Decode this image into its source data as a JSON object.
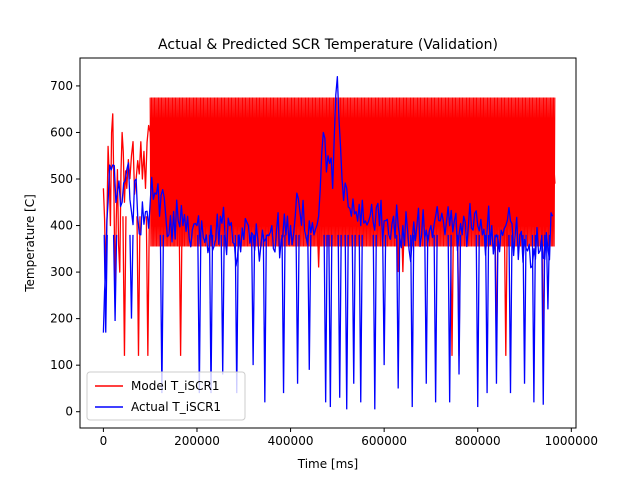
{
  "chart_data": {
    "type": "line",
    "title": "Actual & Predicted SCR Temperature (Validation)",
    "xlabel": "Time [ms]",
    "ylabel": "Temperature [C]",
    "xlim": [
      -50000,
      1010000
    ],
    "ylim": [
      -35,
      760
    ],
    "x_ticks": [
      0,
      200000,
      400000,
      600000,
      800000,
      1000000
    ],
    "x_tick_labels": [
      "0",
      "200000",
      "400000",
      "600000",
      "800000",
      "1000000"
    ],
    "y_ticks": [
      0,
      100,
      200,
      300,
      400,
      500,
      600,
      700
    ],
    "y_tick_labels": [
      "0",
      "100",
      "200",
      "300",
      "400",
      "500",
      "600",
      "700"
    ],
    "grid": false,
    "legend_position": "lower-left",
    "series": [
      {
        "name": "Model T_iSCR1",
        "color": "#ff0000",
        "x": [
          0,
          5000,
          10000,
          15000,
          20000,
          25000,
          30000,
          35000,
          40000,
          45000,
          50000,
          60000,
          70000,
          80000,
          90000,
          100000,
          110000,
          120000,
          140000,
          160000,
          180000,
          200000,
          250000,
          300000,
          350000,
          400000,
          450000,
          500000,
          550000,
          600000,
          650000,
          700000,
          750000,
          800000,
          850000,
          900000,
          950000,
          965000
        ],
        "values": [
          480,
          300,
          570,
          400,
          640,
          250,
          520,
          300,
          600,
          450,
          480,
          550,
          500,
          580,
          480,
          600,
          520,
          560,
          540,
          530,
          520,
          550,
          540,
          530,
          520,
          510,
          530,
          520,
          520,
          510,
          520,
          510,
          520,
          515,
          520,
          510,
          500,
          490
        ],
        "range_bands": [
          {
            "x0": 100000,
            "x1": 965000,
            "min": 355,
            "max": 675
          }
        ],
        "dips": [
          {
            "x": 45000,
            "min": 120
          },
          {
            "x": 75000,
            "min": 120
          },
          {
            "x": 95000,
            "min": 120
          },
          {
            "x": 165000,
            "min": 120
          },
          {
            "x": 460000,
            "min": 310
          },
          {
            "x": 630000,
            "min": 300
          },
          {
            "x": 640000,
            "min": 300
          },
          {
            "x": 745000,
            "min": 120
          },
          {
            "x": 760000,
            "min": 120
          },
          {
            "x": 840000,
            "min": 120
          },
          {
            "x": 860000,
            "min": 120
          },
          {
            "x": 940000,
            "min": 120
          }
        ]
      },
      {
        "name": "Actual T_iSCR1",
        "color": "#0000ff",
        "x": [
          0,
          5000,
          10000,
          20000,
          30000,
          40000,
          50000,
          60000,
          70000,
          80000,
          90000,
          100000,
          110000,
          120000,
          130000,
          140000,
          150000,
          160000,
          170000,
          180000,
          190000,
          200000,
          210000,
          220000,
          230000,
          240000,
          250000,
          260000,
          270000,
          280000,
          290000,
          300000,
          310000,
          320000,
          330000,
          340000,
          350000,
          360000,
          370000,
          380000,
          390000,
          400000,
          410000,
          420000,
          430000,
          440000,
          450000,
          460000,
          470000,
          480000,
          490000,
          500000,
          510000,
          520000,
          530000,
          540000,
          550000,
          560000,
          570000,
          580000,
          590000,
          600000,
          610000,
          620000,
          630000,
          640000,
          650000,
          660000,
          670000,
          680000,
          690000,
          700000,
          710000,
          720000,
          730000,
          740000,
          750000,
          760000,
          770000,
          780000,
          790000,
          800000,
          810000,
          820000,
          830000,
          840000,
          850000,
          860000,
          870000,
          880000,
          890000,
          900000,
          910000,
          920000,
          930000,
          940000,
          950000,
          960000
        ],
        "values": [
          170,
          300,
          450,
          530,
          470,
          450,
          520,
          430,
          500,
          380,
          430,
          450,
          470,
          420,
          460,
          380,
          430,
          410,
          400,
          420,
          390,
          400,
          410,
          380,
          400,
          370,
          420,
          380,
          400,
          360,
          380,
          370,
          400,
          380,
          370,
          390,
          380,
          400,
          390,
          370,
          380,
          400,
          420,
          430,
          390,
          410,
          380,
          420,
          600,
          550,
          480,
          720,
          500,
          480,
          420,
          430,
          400,
          410,
          420,
          390,
          400,
          410,
          380,
          420,
          400,
          400,
          390,
          370,
          400,
          380,
          390,
          400,
          420,
          410,
          380,
          400,
          410,
          380,
          420,
          400,
          390,
          400,
          380,
          390,
          400,
          380,
          390,
          400,
          410,
          380,
          380,
          370,
          360,
          350,
          340,
          330,
          350,
          420
        ],
        "dips": [
          {
            "x": 5000,
            "min": 170
          },
          {
            "x": 25000,
            "min": 195
          },
          {
            "x": 60000,
            "min": 200
          },
          {
            "x": 125000,
            "min": 40
          },
          {
            "x": 205000,
            "min": 40
          },
          {
            "x": 230000,
            "min": 40
          },
          {
            "x": 255000,
            "min": 80
          },
          {
            "x": 285000,
            "min": 40
          },
          {
            "x": 320000,
            "min": 100
          },
          {
            "x": 345000,
            "min": 20
          },
          {
            "x": 385000,
            "min": 40
          },
          {
            "x": 415000,
            "min": 60
          },
          {
            "x": 440000,
            "min": 90
          },
          {
            "x": 475000,
            "min": 20
          },
          {
            "x": 485000,
            "min": 10
          },
          {
            "x": 505000,
            "min": 30
          },
          {
            "x": 520000,
            "min": 5
          },
          {
            "x": 535000,
            "min": 60
          },
          {
            "x": 550000,
            "min": 20
          },
          {
            "x": 580000,
            "min": 5
          },
          {
            "x": 600000,
            "min": 100
          },
          {
            "x": 630000,
            "min": 50
          },
          {
            "x": 660000,
            "min": 10
          },
          {
            "x": 690000,
            "min": 60
          },
          {
            "x": 710000,
            "min": 20
          },
          {
            "x": 740000,
            "min": 20
          },
          {
            "x": 760000,
            "min": 80
          },
          {
            "x": 800000,
            "min": 10
          },
          {
            "x": 820000,
            "min": 40
          },
          {
            "x": 840000,
            "min": 60
          },
          {
            "x": 870000,
            "min": 40
          },
          {
            "x": 900000,
            "min": 60
          },
          {
            "x": 920000,
            "min": 20
          },
          {
            "x": 940000,
            "min": 15
          },
          {
            "x": 950000,
            "min": 220
          }
        ]
      }
    ]
  }
}
